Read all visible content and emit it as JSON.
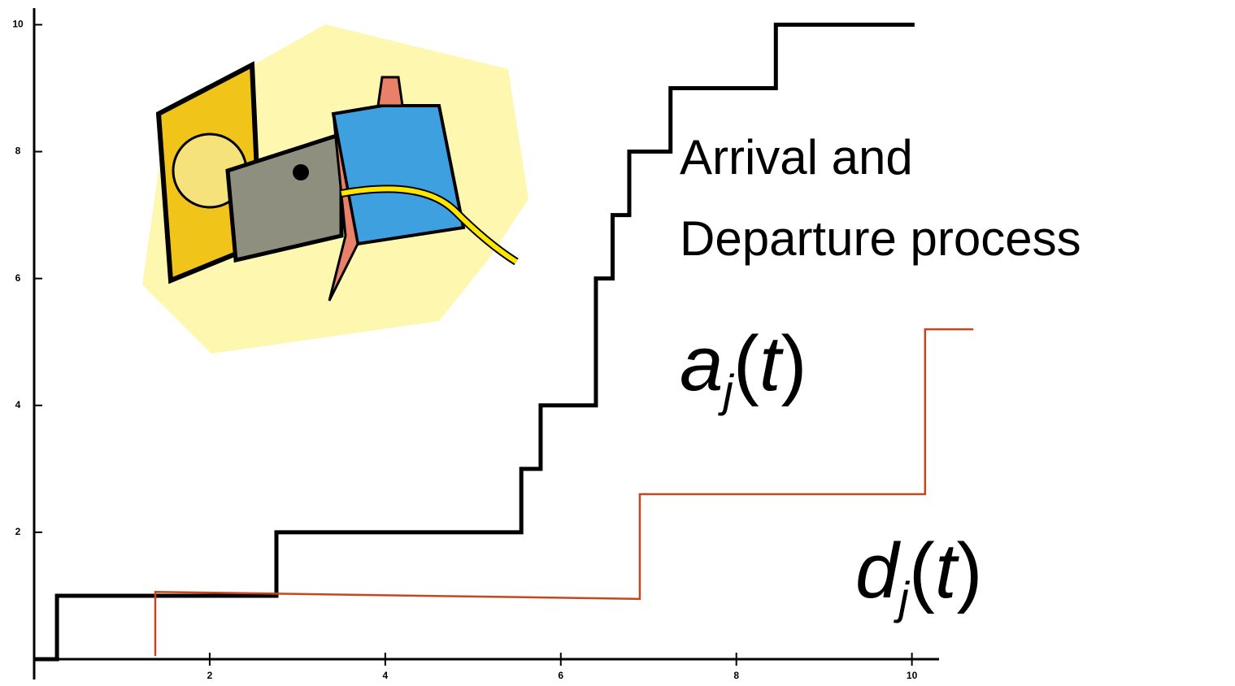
{
  "chart_data": {
    "type": "line",
    "annotation": [
      "Arrival and",
      "Departure process"
    ],
    "series": [
      {
        "label": [
          "a",
          "j",
          "(",
          "t",
          ")"
        ],
        "color": "#000000",
        "x": [
          0,
          0.26,
          0.26,
          2.76,
          2.76,
          5.55,
          5.55,
          5.77,
          5.77,
          6.4,
          6.4,
          6.59,
          6.59,
          6.78,
          6.78,
          7.25,
          7.25,
          8.45,
          8.45,
          10.03
        ],
        "values": [
          0,
          0,
          1,
          1,
          2,
          2,
          3,
          3,
          4,
          4,
          6,
          6,
          7,
          7,
          8,
          8,
          9,
          9,
          10,
          10
        ]
      },
      {
        "label": [
          "d",
          "j",
          "(",
          "t",
          ")"
        ],
        "color": "#c8461e",
        "x": [
          1.38,
          1.38,
          6.9,
          6.9,
          10.15,
          10.15,
          10.7
        ],
        "values": [
          0.05,
          1.06,
          0.95,
          2.6,
          2.6,
          5.2,
          5.2
        ]
      }
    ],
    "xlim": [
      0,
      10.3
    ],
    "ylim": [
      0,
      10.3
    ],
    "xticks": [
      2,
      4,
      6,
      8,
      10
    ],
    "yticks": [
      2,
      4,
      6,
      8,
      10
    ]
  }
}
